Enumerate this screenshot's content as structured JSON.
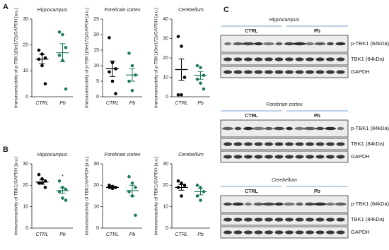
{
  "panel_labels": [
    "A",
    "B",
    "C"
  ],
  "chart_data": [
    {
      "type": "dot",
      "title": "Hippocampus",
      "y_label": "Immunoreactivity of p-TBK1(Ser172)/GAPDH [a.u.]",
      "categories": [
        "CTRL",
        "Pb"
      ],
      "groups": [
        {
          "color": "#000000",
          "values": [
            18,
            16.5,
            15,
            14.5,
            12,
            5
          ]
        },
        {
          "color": "#1f7a5c",
          "values": [
            25,
            24,
            19,
            16,
            14,
            3
          ]
        }
      ],
      "means": [
        14.5,
        17
      ],
      "sems": [
        1.8,
        3.5
      ],
      "ylim": [
        0,
        30
      ],
      "yticks": [
        0,
        10,
        20,
        30
      ]
    },
    {
      "type": "dot",
      "title": "Forebrain cortex",
      "y_label": "Immunoreactivity of p-TBK1(Ser172)/GAPDH [a.u.]",
      "categories": [
        "CTRL",
        "Pb"
      ],
      "groups": [
        {
          "color": "#000000",
          "values": [
            19,
            11,
            9,
            8,
            5,
            1
          ]
        },
        {
          "color": "#1f7a5c",
          "values": [
            14,
            10,
            7,
            5,
            2
          ]
        }
      ],
      "means": [
        9,
        7
      ],
      "sems": [
        2.5,
        2
      ],
      "ylim": [
        0,
        25
      ],
      "yticks": [
        0,
        5,
        10,
        15,
        20,
        25
      ]
    },
    {
      "type": "dot",
      "title": "Cerebellum",
      "y_label": "Immunoreactivity of p-TBK1(Ser172)/GAPDH [a.u.]",
      "categories": [
        "CTRL",
        "Pb"
      ],
      "groups": [
        {
          "color": "#000000",
          "values": [
            31,
            26,
            10,
            1,
            1
          ]
        },
        {
          "color": "#1f7a5c",
          "values": [
            16,
            15,
            11,
            9,
            7,
            4
          ]
        }
      ],
      "means": [
        14,
        11
      ],
      "sems": [
        5.5,
        2
      ],
      "ylim": [
        0,
        40
      ],
      "yticks": [
        0,
        10,
        20,
        30,
        40
      ]
    },
    {
      "type": "dot",
      "title": "Hippocampus",
      "y_label": "Immunoreactivity of TBK1/GAPDH [a.u.]",
      "categories": [
        "CTRL",
        "Pb"
      ],
      "annotation": "*",
      "groups": [
        {
          "color": "#000000",
          "values": [
            25,
            23,
            22,
            21,
            21,
            19
          ]
        },
        {
          "color": "#1f7a5c",
          "values": [
            22,
            19,
            18,
            17,
            14,
            13
          ]
        }
      ],
      "means": [
        21.5,
        17.5
      ],
      "sems": [
        1,
        1.3
      ],
      "ylim": [
        0,
        30
      ],
      "yticks": [
        0,
        10,
        20,
        30
      ]
    },
    {
      "type": "dot",
      "title": "Forebrain cortex",
      "y_label": "Immunoreactivity of TBK1/GAPDH [a.u.]",
      "categories": [
        "CTRL",
        "Pb"
      ],
      "groups": [
        {
          "color": "#000000",
          "values": [
            20,
            19.5,
            19,
            19,
            18.5
          ]
        },
        {
          "color": "#1f7a5c",
          "values": [
            24,
            21,
            19,
            17,
            15,
            6
          ]
        }
      ],
      "means": [
        19,
        17.5
      ],
      "sems": [
        0.5,
        2.5
      ],
      "ylim": [
        0,
        30
      ],
      "yticks": [
        0,
        10,
        20,
        30
      ]
    },
    {
      "type": "dot",
      "title": "Cerebellum",
      "y_label": "Immunoreactivity of TBK1/GAPDH [a.u.]",
      "categories": [
        "CTRL",
        "Pb"
      ],
      "groups": [
        {
          "color": "#000000",
          "values": [
            22,
            21,
            20,
            19,
            15
          ]
        },
        {
          "color": "#1f7a5c",
          "values": [
            20,
            19,
            17,
            15,
            13
          ]
        }
      ],
      "means": [
        19,
        17
      ],
      "sems": [
        1.3,
        1.5
      ],
      "ylim": [
        0,
        30
      ],
      "yticks": [
        0,
        10,
        20,
        30
      ]
    }
  ],
  "blots": [
    {
      "title": "Hippocampus",
      "groups": [
        "CTRL",
        "Pb"
      ],
      "rows": [
        "p-TBK1 (84kDa)",
        "TBK1 (84kDa)",
        "GAPDH"
      ]
    },
    {
      "title": "Forebrain cortex",
      "groups": [
        "CTRL",
        "Pb"
      ],
      "rows": [
        "p-TBK1 (84kDa)",
        "TBK1 (84kDa)",
        "GAPDH"
      ]
    },
    {
      "title": "Cerebellum",
      "groups": [
        "CTRL",
        "Pb"
      ],
      "rows": [
        "p-TBK1 (84kDa)",
        "TBK1 (84kDa)",
        "GAPDH"
      ]
    }
  ]
}
